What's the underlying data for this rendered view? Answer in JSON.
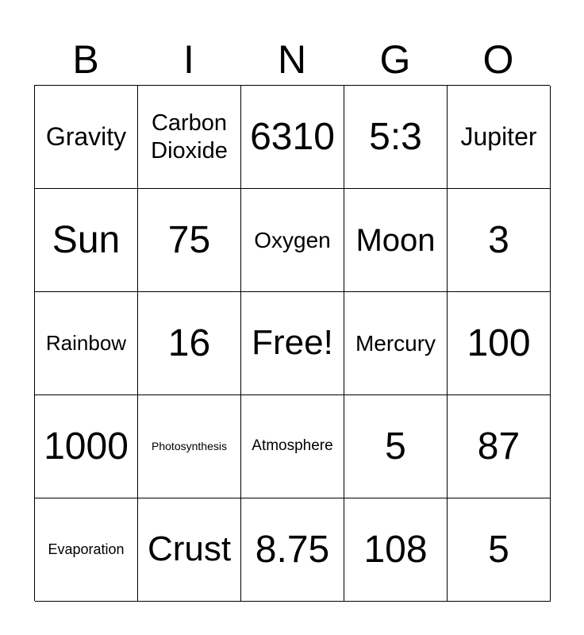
{
  "header": [
    "B",
    "I",
    "N",
    "G",
    "O"
  ],
  "cells": [
    [
      "Gravity",
      "Carbon Dioxide",
      "6310",
      "5:3",
      "Jupiter"
    ],
    [
      "Sun",
      "75",
      "Oxygen",
      "Moon",
      "3"
    ],
    [
      "Rainbow",
      "16",
      "Free!",
      "Mercury",
      "100"
    ],
    [
      "1000",
      "Photosynthesis",
      "Atmosphere",
      "5",
      "87"
    ],
    [
      "Evaporation",
      "Crust",
      "8.75",
      "108",
      "5"
    ]
  ]
}
